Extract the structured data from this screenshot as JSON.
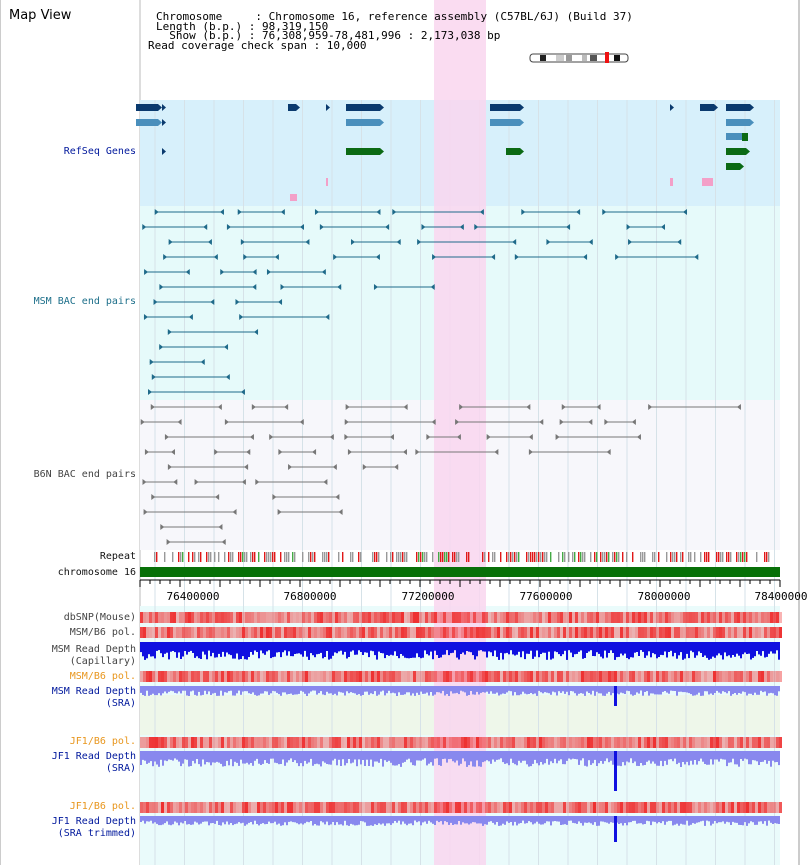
{
  "view": {
    "title": "Map View",
    "header_lines": [
      "Chromosome     : Chromosome 16, reference assembly (C57BL/6J) (Build 37)",
      "Length (b.p.) : 98,319,150",
      "  Show (b.p.) : 76,308,959-78,481,996 : 2,173,038 bp",
      "Read coverage check span : 10,000"
    ],
    "highlight_color": "#f9d6ef"
  },
  "tracks": {
    "refseq": "RefSeq Genes",
    "msm_bac": "MSM BAC end pairs",
    "b6n_bac": "B6N BAC end pairs",
    "repeat": "Repeat",
    "chromosome": "chromosome 16",
    "dbsnp": "dbSNP(Mouse)",
    "msm_pol_1": "MSM/B6 pol.",
    "msm_depth_cap_1": "MSM Read Depth",
    "msm_depth_cap_2": "(Capillary)",
    "msm_pol_2": "MSM/B6 pol.",
    "msm_depth_sra_1": "MSM Read Depth",
    "msm_depth_sra_2": "(SRA)",
    "jf1_pol_1": "JF1/B6 pol.",
    "jf1_depth_1": "JF1 Read Depth",
    "jf1_depth_2": "(SRA)",
    "jf1_pol_2": "JF1/B6 pol.",
    "jf1_trim_1": "JF1 Read Depth",
    "jf1_trim_2": "(SRA trimmed)"
  },
  "axis": {
    "ticks": [
      "76400000",
      "76800000",
      "77200000",
      "77600000",
      "78000000",
      "78400000"
    ]
  },
  "colors": {
    "refseq_bg": "#d7f0fb",
    "bac_bg": "#e6fafa",
    "lower_bg": "#eafbfb",
    "gene_dark": "#0a3a6e",
    "gene_mid": "#4a8fbc",
    "gene_green": "#0b6a14",
    "gene_pink": "#f3a0c8",
    "msm_line": "#1f6a8a",
    "b6n_line": "#777777",
    "chrom_green": "#087008",
    "depth_dark": "#1010e0",
    "depth_light": "#8888ee",
    "pol_red": "#ee3030"
  }
}
